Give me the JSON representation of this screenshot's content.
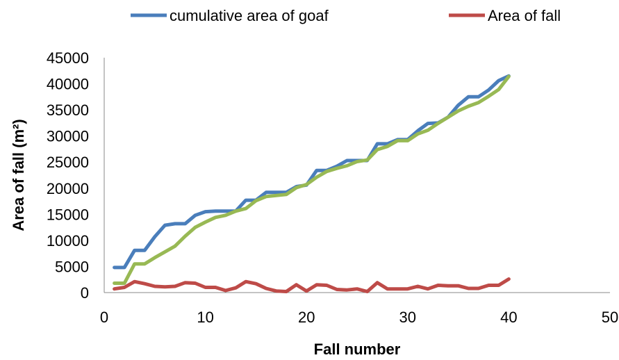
{
  "chart_data": {
    "type": "line",
    "title": "",
    "xlabel": "Fall number",
    "ylabel": "Area of fall (m²)",
    "xlim": [
      0,
      50
    ],
    "ylim": [
      0,
      45000
    ],
    "xticks": [
      "0",
      "10",
      "20",
      "30",
      "40",
      "50"
    ],
    "yticks": [
      "0",
      "5000",
      "10000",
      "15000",
      "20000",
      "25000",
      "30000",
      "35000",
      "40000",
      "45000"
    ],
    "grid": false,
    "legend_position": "top",
    "x": [
      1,
      2,
      3,
      4,
      5,
      6,
      7,
      8,
      9,
      10,
      11,
      12,
      13,
      14,
      15,
      16,
      17,
      18,
      19,
      20,
      21,
      22,
      23,
      24,
      25,
      26,
      27,
      28,
      29,
      30,
      31,
      32,
      33,
      34,
      35,
      36,
      37,
      38,
      39,
      40
    ],
    "series": [
      {
        "name": "cumulative area of goaf",
        "color": "#4a7ebb",
        "values": [
          4800,
          4800,
          8100,
          8100,
          10700,
          12900,
          13200,
          13200,
          14800,
          15500,
          15600,
          15600,
          15600,
          17700,
          17700,
          19200,
          19200,
          19200,
          20300,
          20600,
          23400,
          23400,
          24200,
          25300,
          25300,
          25300,
          28500,
          28500,
          29300,
          29300,
          31000,
          32400,
          32500,
          33600,
          35900,
          37500,
          37500,
          38800,
          40600,
          41500
        ]
      },
      {
        "name": "Area of fall",
        "color": "#be4b48",
        "values": [
          700,
          1000,
          2100,
          1700,
          1200,
          1100,
          1200,
          1900,
          1800,
          1000,
          1000,
          400,
          900,
          2100,
          1700,
          800,
          300,
          200,
          1500,
          300,
          1500,
          1400,
          600,
          500,
          700,
          200,
          1900,
          700,
          700,
          700,
          1200,
          700,
          1400,
          1300,
          1300,
          800,
          800,
          1400,
          1400,
          2600
        ]
      },
      {
        "color": "#98b954",
        "values": [
          1800,
          1800,
          5500,
          5500,
          6700,
          7800,
          8900,
          10800,
          12500,
          13500,
          14400,
          14800,
          15600,
          16100,
          17600,
          18400,
          18600,
          18800,
          20100,
          20700,
          22100,
          23200,
          23800,
          24300,
          25100,
          25400,
          27400,
          28000,
          29100,
          29100,
          30400,
          31100,
          32400,
          33600,
          34800,
          35700,
          36400,
          37600,
          38900,
          41400
        ]
      }
    ]
  }
}
